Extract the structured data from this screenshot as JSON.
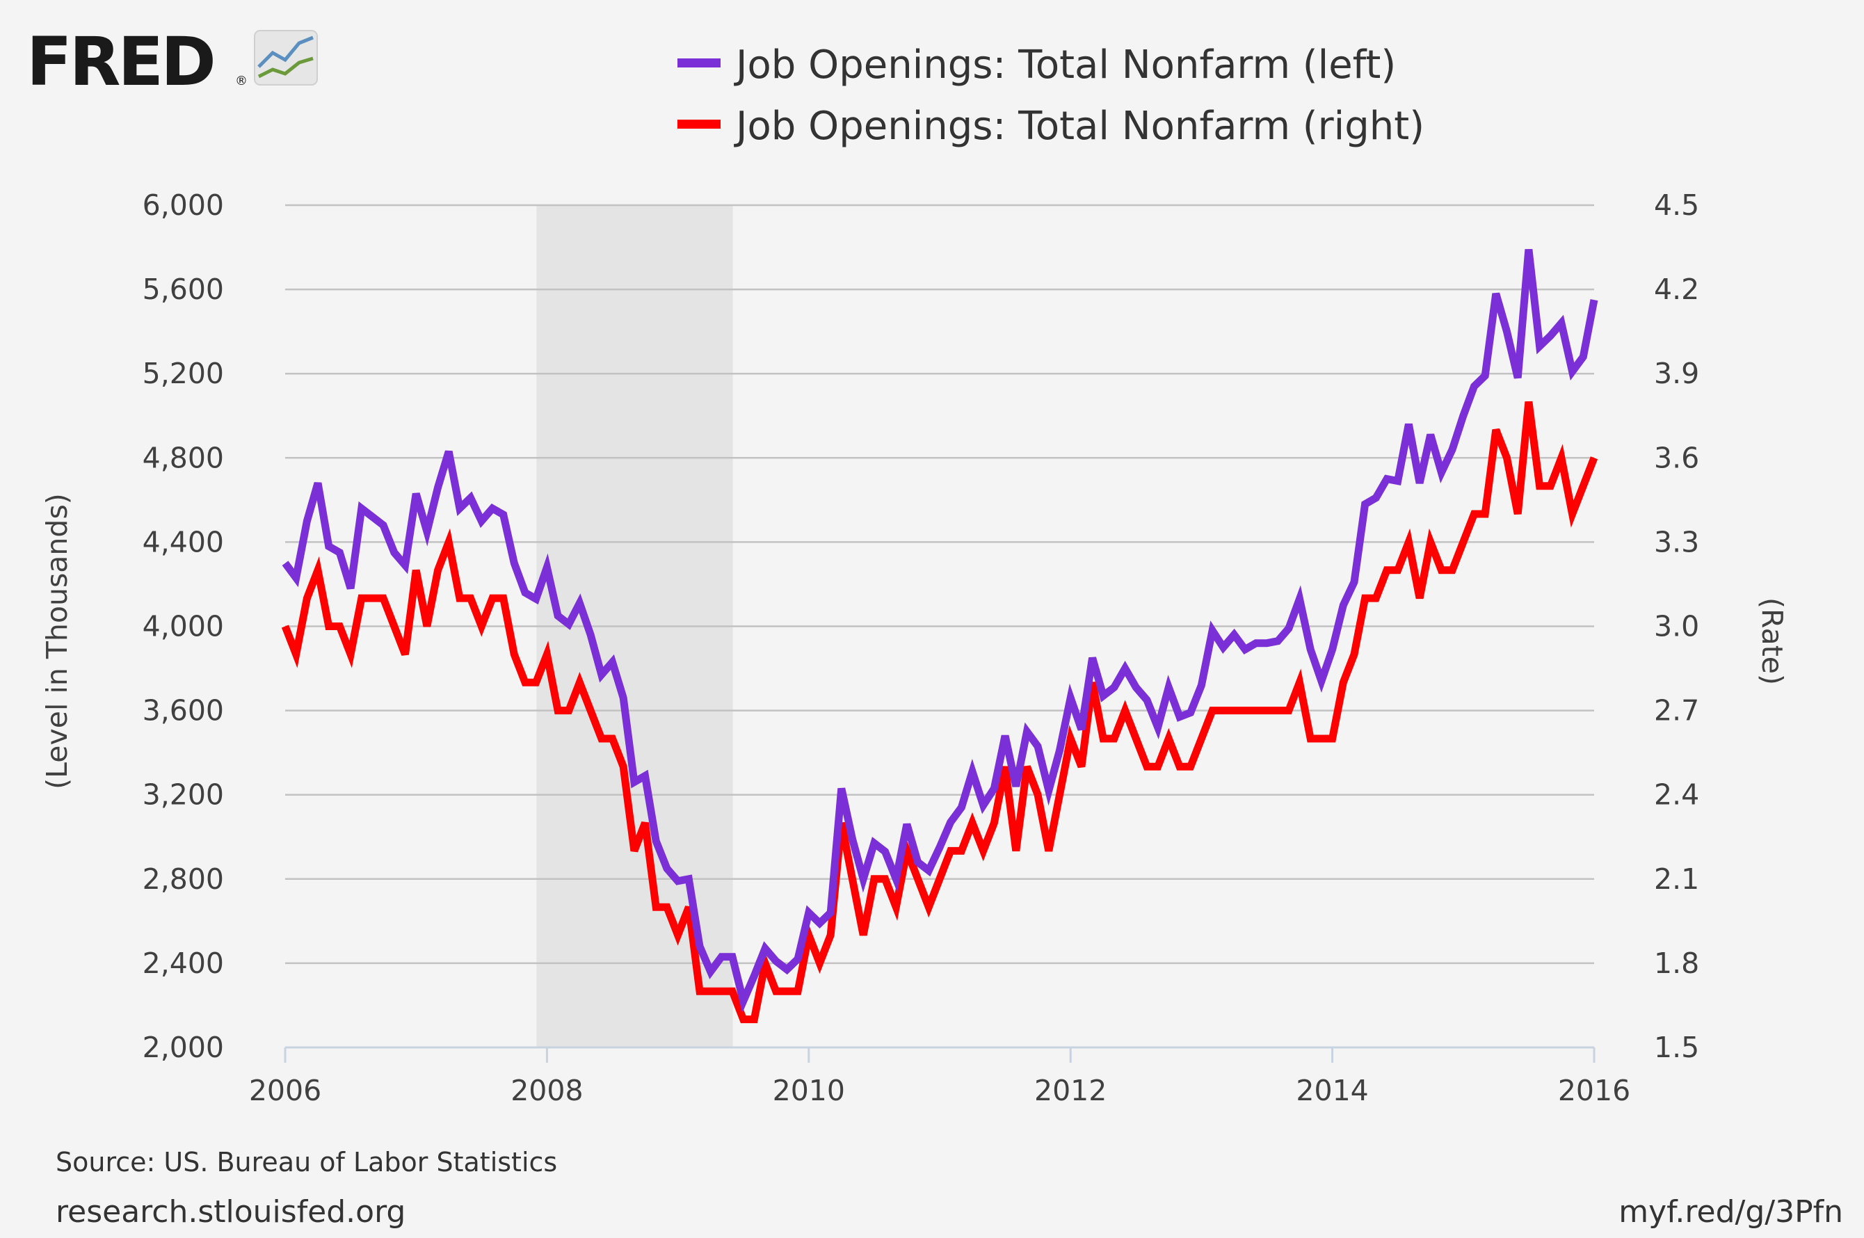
{
  "logo": {
    "text": "FRED",
    "registered": "®"
  },
  "footer": {
    "source": "Source: US. Bureau of Labor Statistics",
    "site": "research.stlouisfed.org",
    "short_url": "myf.red/g/3Pfn"
  },
  "colors": {
    "left_series": "#7b2fd6",
    "right_series": "#ff0000",
    "recession": "#e4e4e4",
    "grid": "#c2c2c2"
  },
  "chart_data": {
    "type": "line",
    "legend_position": "top",
    "grid": true,
    "recession_shading": {
      "start": 2007.92,
      "end": 2009.42
    },
    "x_axis": {
      "ticks": [
        "2006",
        "2008",
        "2010",
        "2012",
        "2014",
        "2016"
      ],
      "range": [
        2006,
        2016
      ]
    },
    "y_left": {
      "label": "(Level in Thousands)",
      "range": [
        2000,
        6000
      ],
      "ticks": [
        "2,000",
        "2,400",
        "2,800",
        "3,200",
        "3,600",
        "4,000",
        "4,400",
        "4,800",
        "5,200",
        "5,600",
        "6,000"
      ]
    },
    "y_right": {
      "label": "(Rate)",
      "range": [
        1.5,
        4.5
      ],
      "ticks": [
        "1.5",
        "1.8",
        "2.1",
        "2.4",
        "2.7",
        "3.0",
        "3.3",
        "3.6",
        "3.9",
        "4.2",
        "4.5"
      ]
    },
    "series": [
      {
        "name": "Job Openings: Total Nonfarm (left)",
        "axis": "left",
        "start": 2006.0,
        "step": 0.0833333,
        "values": [
          4300,
          4230,
          4500,
          4680,
          4380,
          4350,
          4180,
          4560,
          4520,
          4480,
          4350,
          4290,
          4630,
          4450,
          4660,
          4830,
          4560,
          4610,
          4500,
          4560,
          4530,
          4300,
          4160,
          4130,
          4280,
          4050,
          4010,
          4110,
          3960,
          3770,
          3830,
          3660,
          3260,
          3290,
          2980,
          2850,
          2790,
          2800,
          2480,
          2360,
          2430,
          2430,
          2220,
          2340,
          2470,
          2410,
          2370,
          2420,
          2640,
          2590,
          2640,
          3230,
          2990,
          2800,
          2970,
          2930,
          2800,
          3060,
          2880,
          2840,
          2950,
          3070,
          3140,
          3310,
          3150,
          3230,
          3480,
          3240,
          3500,
          3430,
          3220,
          3410,
          3660,
          3510,
          3850,
          3670,
          3710,
          3800,
          3710,
          3650,
          3520,
          3710,
          3570,
          3590,
          3720,
          3980,
          3900,
          3960,
          3890,
          3920,
          3920,
          3930,
          3990,
          4130,
          3890,
          3740,
          3890,
          4100,
          4210,
          4580,
          4610,
          4700,
          4690,
          4960,
          4680,
          4910,
          4730,
          4840,
          5000,
          5140,
          5190,
          5580,
          5400,
          5180,
          5790,
          5330,
          5380,
          5440,
          5210,
          5280,
          5550
        ]
      },
      {
        "name": "Job Openings: Total Nonfarm (right)",
        "axis": "right",
        "start": 2006.0,
        "step": 0.0833333,
        "values": [
          3.0,
          2.9,
          3.1,
          3.2,
          3.0,
          3.0,
          2.9,
          3.1,
          3.1,
          3.1,
          3.0,
          2.9,
          3.2,
          3.0,
          3.2,
          3.3,
          3.1,
          3.1,
          3.0,
          3.1,
          3.1,
          2.9,
          2.8,
          2.8,
          2.9,
          2.7,
          2.7,
          2.8,
          2.7,
          2.6,
          2.6,
          2.5,
          2.2,
          2.3,
          2.0,
          2.0,
          1.9,
          2.0,
          1.7,
          1.7,
          1.7,
          1.7,
          1.6,
          1.6,
          1.8,
          1.7,
          1.7,
          1.7,
          1.9,
          1.8,
          1.9,
          2.3,
          2.1,
          1.9,
          2.1,
          2.1,
          2.0,
          2.2,
          2.1,
          2.0,
          2.1,
          2.2,
          2.2,
          2.3,
          2.2,
          2.3,
          2.5,
          2.2,
          2.5,
          2.4,
          2.2,
          2.4,
          2.6,
          2.5,
          2.8,
          2.6,
          2.6,
          2.7,
          2.6,
          2.5,
          2.5,
          2.6,
          2.5,
          2.5,
          2.6,
          2.7,
          2.7,
          2.7,
          2.7,
          2.7,
          2.7,
          2.7,
          2.7,
          2.8,
          2.6,
          2.6,
          2.6,
          2.8,
          2.9,
          3.1,
          3.1,
          3.2,
          3.2,
          3.3,
          3.1,
          3.3,
          3.2,
          3.2,
          3.3,
          3.4,
          3.4,
          3.7,
          3.6,
          3.4,
          3.8,
          3.5,
          3.5,
          3.6,
          3.4,
          3.5,
          3.6
        ]
      }
    ]
  }
}
